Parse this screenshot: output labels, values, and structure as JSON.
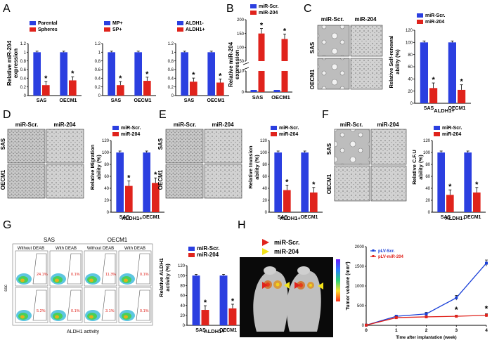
{
  "figure": {
    "panel_labels": [
      "A",
      "B",
      "C",
      "D",
      "E",
      "F",
      "G",
      "H"
    ],
    "asterisk": "*",
    "ylabels": {
      "A": [
        "Relative miR-204",
        "expression"
      ],
      "B": [
        "Relative miR-204",
        "expression"
      ],
      "C": [
        "Relative Self-renewal",
        "ability (%)"
      ],
      "D": [
        "Relative Migration",
        "ability (%)"
      ],
      "E": [
        "Relative Invasion",
        "ability (%)"
      ],
      "F": [
        "Relative C.F.U",
        "ability (%)"
      ],
      "G": [
        "Relative ALDH1",
        "activity (%)"
      ],
      "H": "Tumor volume (mm³)"
    },
    "group_label": "ALDH1+",
    "micro_cols": [
      "miR-Scr.",
      "miR-204"
    ],
    "micro_rows": [
      "SAS",
      "OECM1"
    ],
    "facs": {
      "top_labels": [
        "SAS",
        "OECM1"
      ],
      "sub_labels": [
        "Without DEAB",
        "With DEAB",
        "Without DEAB",
        "With DEAB"
      ],
      "percents_top": [
        "24.1%",
        "0.1%",
        "11.3%",
        "0.1%"
      ],
      "percents_bottom": [
        "5.2%",
        "0.1%",
        "3.1%",
        "0.1%"
      ],
      "xaxis": "ALDH1 activity",
      "yaxis": "ssc"
    },
    "mouse_legend": [
      "miR-Scr.",
      "miR-204"
    ],
    "colors": {
      "blue": "#2b3fe0",
      "red": "#e0231c",
      "line_blue": "#1a40d8",
      "line_red": "#e0231c"
    }
  },
  "chart_data": [
    {
      "id": "A1",
      "type": "bar",
      "categories": [
        "SAS",
        "OECM1"
      ],
      "series": [
        {
          "name": "Parental",
          "values": [
            1.0,
            1.0
          ]
        },
        {
          "name": "Spheres",
          "values": [
            0.24,
            0.35
          ]
        }
      ],
      "ylim": [
        0,
        1.2
      ],
      "yticks": [
        "0",
        "0.2",
        "0.4",
        "0.6",
        "0.8",
        "1",
        "1.2"
      ]
    },
    {
      "id": "A2",
      "type": "bar",
      "categories": [
        "SAS",
        "OECM1"
      ],
      "series": [
        {
          "name": "MP+",
          "values": [
            1.0,
            1.0
          ]
        },
        {
          "name": "SP+",
          "values": [
            0.24,
            0.34
          ]
        }
      ],
      "ylim": [
        0,
        1.2
      ],
      "yticks": [
        "0",
        "0.2",
        "0.4",
        "0.6",
        "0.8",
        "1",
        "1.2"
      ]
    },
    {
      "id": "A3",
      "type": "bar",
      "categories": [
        "SAS",
        "OECM1"
      ],
      "series": [
        {
          "name": "ALDH1-",
          "values": [
            1.0,
            1.0
          ]
        },
        {
          "name": "ALDH1+",
          "values": [
            0.32,
            0.3
          ]
        }
      ],
      "ylim": [
        0,
        1.2
      ],
      "yticks": [
        "0",
        "0.2",
        "0.4",
        "0.6",
        "0.8",
        "1",
        "1.2"
      ]
    },
    {
      "id": "B",
      "type": "bar",
      "categories": [
        "SAS",
        "OECM1"
      ],
      "series": [
        {
          "name": "miR-Scr.",
          "values": [
            1,
            1
          ]
        },
        {
          "name": "miR-204",
          "values": [
            150,
            130
          ]
        }
      ],
      "axis_break": true,
      "yticks_low": [
        "0",
        "10"
      ],
      "yticks_high": [
        "50",
        "100",
        "150",
        "200"
      ]
    },
    {
      "id": "C",
      "type": "bar",
      "categories": [
        "SAS",
        "OECM1"
      ],
      "series": [
        {
          "name": "miR-Scr.",
          "values": [
            100,
            100
          ]
        },
        {
          "name": "miR-204",
          "values": [
            25,
            22
          ]
        }
      ],
      "ylim": [
        0,
        120
      ],
      "yticks": [
        "0",
        "20",
        "40",
        "60",
        "80",
        "100",
        "120"
      ]
    },
    {
      "id": "D",
      "type": "bar",
      "categories": [
        "SAS",
        "OECM1"
      ],
      "series": [
        {
          "name": "miR-Scr.",
          "values": [
            100,
            100
          ]
        },
        {
          "name": "miR-204",
          "values": [
            44,
            49
          ]
        }
      ],
      "ylim": [
        0,
        120
      ],
      "yticks": [
        "0",
        "20",
        "40",
        "60",
        "80",
        "100",
        "120"
      ]
    },
    {
      "id": "E",
      "type": "bar",
      "categories": [
        "SAS",
        "OECM1"
      ],
      "series": [
        {
          "name": "miR-Scr.",
          "values": [
            100,
            100
          ]
        },
        {
          "name": "miR-204",
          "values": [
            37,
            33
          ]
        }
      ],
      "ylim": [
        0,
        120
      ],
      "yticks": [
        "0",
        "20",
        "40",
        "60",
        "80",
        "100",
        "120"
      ]
    },
    {
      "id": "F",
      "type": "bar",
      "categories": [
        "SAS",
        "OECM1"
      ],
      "series": [
        {
          "name": "miR-Scr.",
          "values": [
            100,
            100
          ]
        },
        {
          "name": "miR-204",
          "values": [
            29,
            33
          ]
        }
      ],
      "ylim": [
        0,
        120
      ],
      "yticks": [
        "0",
        "20",
        "40",
        "60",
        "80",
        "100",
        "120"
      ]
    },
    {
      "id": "G",
      "type": "bar",
      "categories": [
        "SAS",
        "OECM1"
      ],
      "series": [
        {
          "name": "miR-Scr.",
          "values": [
            100,
            100
          ]
        },
        {
          "name": "miR-204",
          "values": [
            31,
            34
          ]
        }
      ],
      "ylim": [
        0,
        120
      ],
      "yticks": [
        "0",
        "20",
        "40",
        "60",
        "80",
        "100",
        "120"
      ]
    },
    {
      "id": "H",
      "type": "line",
      "x": [
        0,
        1,
        2,
        3,
        4
      ],
      "series": [
        {
          "name": "pLV-Scr.",
          "values": [
            5,
            230,
            290,
            700,
            1580
          ]
        },
        {
          "name": "pLV-miR-204",
          "values": [
            5,
            195,
            215,
            230,
            255
          ]
        }
      ],
      "ylim": [
        0,
        2000
      ],
      "yticks": [
        "0",
        "500",
        "1000",
        "1500",
        "2000"
      ],
      "xticks": [
        "0",
        "1",
        "2",
        "3",
        "4"
      ],
      "xlabel": "Time after implantation (week)",
      "ylabel": "Tumor volume (mm³)"
    }
  ]
}
